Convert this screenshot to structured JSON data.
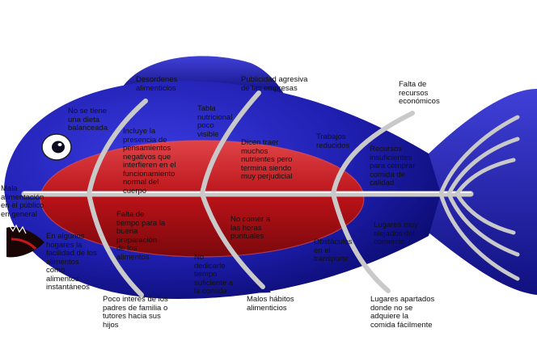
{
  "colors": {
    "body_blue": "#1f1fb0",
    "body_dark": "#0a0a6e",
    "belly_red": "#c8161c",
    "bone_gray": "#c9c9c9",
    "text": "#111111"
  },
  "labels": {
    "mala_alimentacion": "Mala\nalimentación\nen el público\nen general",
    "no_dieta": "No se tiene\nuna dieta\nbalanceada",
    "desordenes": "Desordenes\nalimenticios",
    "incluye": "Incluye la\npresencia de\npensamientos\nnegativos que\ninterfieren en el\nfuncionamiento\nnormal del\ncuerpo",
    "tabla": "Tabla\nnutricional\npoco\nvisible",
    "publicidad": "Publicidad agresiva\nde las empresas",
    "dicen_traer": "Dicen traer\nmuchos\nnutrientes pero\ntermina siendo\nmuy perjudicial",
    "trabajos": "Trabajos\nreducidos",
    "falta_recursos": "Falta de\nrecursos\neconómicos",
    "recursos_insuf": "Recursos\ninsuficientes\npara comprar\ncomida de\ncalidad",
    "en_algunos": "En algunos\nhogares la\nfacilidad de los\nalimentos\ncomo\nalimentos\ninstantáneos",
    "falta_tiempo": "Falta de\ntiempo para la\nbuena\npreparación\nde los\nalimentos",
    "no_dedicarle": "No\ndedicarle\ntiempo\nsuficiente a\nla comida",
    "no_comer": "No comer a\nlas horas\npuntuales",
    "obstaculos": "Obstáculos\nen el\ntransporte",
    "lugares_alejados": "Lugares muy\nalejados del\ncomercio",
    "poco_interes": "Poco interés de los\npadres de familia o\ntutores hacia sus\nhijos",
    "malos_habitos": "Malos hábitos\nalimenticios",
    "lugares_apartados": "Lugares apartados\ndonde no se\nadquiere la\ncomida fácilmente"
  }
}
